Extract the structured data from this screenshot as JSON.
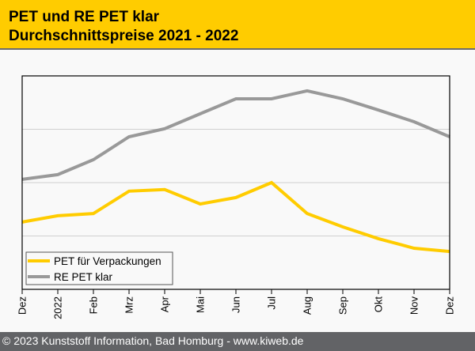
{
  "header": {
    "title_line1": "PET und RE PET klar",
    "title_line2": "Durchschnittspreise 2021 - 2022"
  },
  "footer": {
    "text": "© 2023 Kunststoff Information, Bad Homburg - www.kiweb.de"
  },
  "colors": {
    "accent": "#ffcc00",
    "series_pet": "#ffcc00",
    "series_repet": "#999999",
    "footer_bg": "#626366"
  },
  "chart_data": {
    "type": "line",
    "title": "PET und RE PET klar Durchschnittspreise 2021 - 2022",
    "xlabel": "",
    "ylabel": "",
    "x": [
      "Dez",
      "2022",
      "Feb",
      "Mrz",
      "Apr",
      "Mai",
      "Jun",
      "Jul",
      "Aug",
      "Sep",
      "Okt",
      "Nov",
      "Dez"
    ],
    "ylim": [
      0,
      4
    ],
    "y_units": "relative (no y-axis labels shown; gridlines at 1, 2, 3)",
    "grid": true,
    "legend_position": "bottom-left",
    "series": [
      {
        "name": "PET für Verpackungen",
        "color": "#ffcc00",
        "values": [
          1.26,
          1.38,
          1.42,
          1.84,
          1.87,
          1.6,
          1.72,
          2.0,
          1.42,
          1.17,
          0.95,
          0.77,
          0.71
        ]
      },
      {
        "name": "RE PET klar",
        "color": "#999999",
        "values": [
          2.06,
          2.15,
          2.43,
          2.86,
          3.01,
          3.29,
          3.57,
          3.57,
          3.72,
          3.57,
          3.36,
          3.14,
          2.86
        ]
      }
    ]
  }
}
